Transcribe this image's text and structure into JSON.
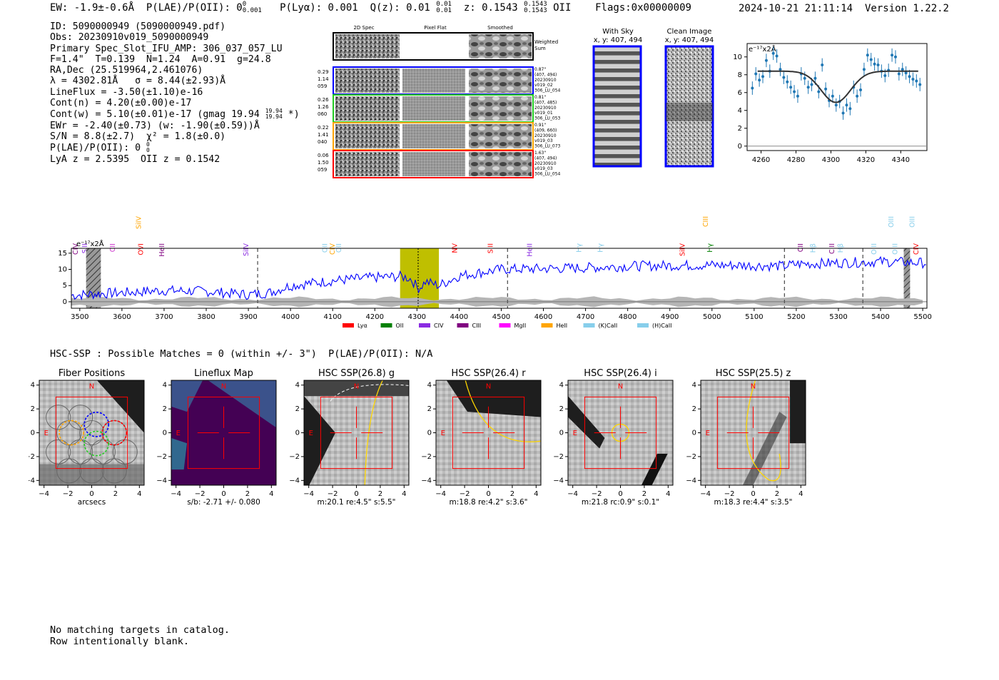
{
  "header": {
    "ew": "EW: -1.9±-0.6Å",
    "plae_label": "P(LAE)/P(OII): 0",
    "plae_sup": "0",
    "plae_sub": "0.001",
    "plya": "P(Lyα): 0.001",
    "qz_label": "Q(z): 0.01",
    "qz_sup": "0.01",
    "qz_sub": "0.01",
    "z_label": "z: 0.1543",
    "z_sup": "0.1543",
    "z_sub": "0.1543",
    "z_line": "OII",
    "flags": "Flags:0x00000009",
    "datetime": "2024-10-21 21:11:14",
    "version": "Version 1.22.2"
  },
  "info": [
    "ID: 5090000949 (5090000949.pdf)",
    "Obs: 20230910v019_5090000949",
    "Primary Spec_Slot_IFU_AMP: 306_037_057_LU",
    "F=1.4\"  T=0.139  N=1.24  A=0.91  g=24.8",
    "RA,Dec (25.519964,2.461076)",
    "λ = 4302.81Å   σ = 8.44(±2.93)Å",
    "LineFlux = -3.50(±1.10)e-16",
    "Cont(n) = 4.20(±0.00)e-17",
    "Cont(w) = 5.10(±0.01)e-17 (gmag 19.94",
    "EWr = -2.40(±0.73) (w: -1.90(±0.59))Å",
    "S/N = 8.8(±2.7)  χ² = 1.8(±0.0)",
    "P(LAE)/P(OII): 0",
    "LyA z = 2.5395  OII z = 0.1542"
  ],
  "info_extras": {
    "gmag_sup": "19.94",
    "gmag_sub": "19.94",
    "gmag_tail": "*)",
    "plae_sup": "0",
    "plae_sub": "0"
  },
  "cutouts": {
    "headers": [
      "2D Spec",
      "Pixel Flat",
      "Smoothed"
    ],
    "weighted_label_1": "Weighted",
    "weighted_label_2": "Sum",
    "rows": [
      {
        "left": [
          "0.29",
          "1.14",
          "059"
        ],
        "right": [
          "0.87\"",
          "(407, 494)",
          "20230910",
          "v019_02",
          "306_LU_054"
        ],
        "color": "#0000ff"
      },
      {
        "left": [
          "0.26",
          "1.26",
          "060"
        ],
        "right": [
          "0.81\"",
          "(407, 485)",
          "20230910",
          "v019_01",
          "306_LU_053"
        ],
        "color": "#22cc22"
      },
      {
        "left": [
          "0.22",
          "1.41",
          "040"
        ],
        "right": [
          "0.91\"",
          "(409, 660)",
          "20230910",
          "v019_03",
          "306_LU_073"
        ],
        "color": "#ffa500"
      },
      {
        "left": [
          "0.06",
          "1.50",
          "059"
        ],
        "right": [
          "1.63\"",
          "(407, 494)",
          "20230910",
          "v019_03",
          "306_LU_054"
        ],
        "color": "#ff0000"
      }
    ]
  },
  "sky_panels": {
    "with_sky_title": "With Sky",
    "with_sky_coords": "x, y: 407, 494",
    "clean_title": "Clean Image",
    "clean_coords": "x, y: 407, 494"
  },
  "zoom_chart": {
    "unit_label": "e⁻¹⁷x2Å"
  },
  "spectrum_labels": {
    "unit_label": "e⁻¹⁷x2Å"
  },
  "hsc": {
    "summary": "HSC-SSP : Possible Matches = 0 (within +/- 3\")  P(LAE)/P(OII): N/A",
    "panels": [
      {
        "title": "Fiber Positions",
        "caption": "arcsecs"
      },
      {
        "title": "Lineflux Map",
        "caption": "s/b: -2.71 +/- 0.080"
      },
      {
        "title": "HSC SSP(26.8) g",
        "caption": "m:20.1  re:4.5\"  s:5.5\""
      },
      {
        "title": "HSC SSP(26.4) r",
        "caption": "m:18.8  re:4.2\"  s:3.6\""
      },
      {
        "title": "HSC SSP(26.4) i",
        "caption": "m:21.8  rc:0.9\"  s:0.1\""
      },
      {
        "title": "HSC SSP(25.5) z",
        "caption": "m:18.3  re:4.4\"  s:3.5\""
      }
    ],
    "n_label": "N",
    "e_label": "E"
  },
  "notes": [
    "No matching targets in catalog.",
    "Row intentionally blank."
  ],
  "chart_data": [
    {
      "type": "scatter",
      "title": "",
      "xlabel": "",
      "ylabel": "e⁻¹⁷x2Å",
      "xlim": [
        4252,
        4355
      ],
      "ylim": [
        -0.5,
        11.5
      ],
      "xticks": [
        4260,
        4280,
        4300,
        4320,
        4340
      ],
      "yticks": [
        0,
        2,
        4,
        6,
        8,
        10
      ],
      "points": {
        "x": [
          4255,
          4257,
          4259,
          4261,
          4263,
          4265,
          4267,
          4269,
          4271,
          4273,
          4275,
          4277,
          4279,
          4281,
          4283,
          4285,
          4287,
          4289,
          4291,
          4293,
          4295,
          4297,
          4299,
          4301,
          4303,
          4305,
          4307,
          4309,
          4311,
          4313,
          4315,
          4317,
          4319,
          4321,
          4323,
          4325,
          4327,
          4329,
          4331,
          4333,
          4335,
          4337,
          4339,
          4341,
          4343,
          4345,
          4347,
          4349,
          4351
        ],
        "y": [
          6.5,
          8.1,
          7.4,
          7.8,
          9.6,
          8.4,
          10.4,
          10.1,
          8.6,
          7.7,
          7.2,
          6.6,
          6.1,
          5.6,
          8.1,
          7.6,
          6.6,
          6.9,
          7.6,
          6.1,
          9.1,
          6.4,
          5.1,
          5.6,
          4.6,
          5.0,
          3.7,
          4.6,
          4.2,
          6.6,
          5.6,
          6.3,
          8.6,
          10.2,
          9.7,
          9.2,
          9.1,
          8.4,
          7.9,
          8.5,
          10.2,
          10.0,
          8.1,
          8.6,
          8.2,
          7.8,
          7.5,
          7.3,
          6.9
        ]
      },
      "fit": {
        "continuum": 8.4,
        "center": 4302.81,
        "sigma": 8.44,
        "depth": 3.5
      }
    },
    {
      "type": "line",
      "title": "",
      "xlabel": "",
      "ylabel": "e⁻¹⁷x2Å",
      "xlim": [
        3480,
        5510
      ],
      "ylim": [
        -2,
        16.5
      ],
      "xticks": [
        3500,
        3600,
        3700,
        3800,
        3900,
        4000,
        4100,
        4200,
        4300,
        4400,
        4500,
        4600,
        4700,
        4800,
        4900,
        5000,
        5100,
        5200,
        5300,
        5400,
        5500
      ],
      "yticks": [
        0,
        5,
        10,
        15
      ],
      "highlight_region": [
        4260,
        4352
      ],
      "line_center": 4302.81,
      "vertical_dashed": [
        3922,
        4515,
        5172,
        5358
      ],
      "hatched_bands": [
        [
          3515,
          3550
        ],
        [
          5455,
          5470
        ]
      ],
      "line_markers": [
        {
          "label": "CIV",
          "x": 3490,
          "color": "#800080",
          "row": 0
        },
        {
          "label": "SiII",
          "x": 3512,
          "color": "#8a2be2",
          "row": 0
        },
        {
          "label": "CII",
          "x": 3578,
          "color": "#cc33cc",
          "row": 0
        },
        {
          "label": "SiIV",
          "x": 3640,
          "color": "#ffa500",
          "row": 1
        },
        {
          "label": "OVI",
          "x": 3645,
          "color": "#ff0000",
          "row": 0
        },
        {
          "label": "HeII",
          "x": 3695,
          "color": "#800080",
          "row": 0
        },
        {
          "label": "SiIV",
          "x": 3895,
          "color": "#8a2be2",
          "row": 0
        },
        {
          "label": "OII",
          "x": 4082,
          "color": "#87ceeb",
          "row": 0
        },
        {
          "label": "CIV",
          "x": 4100,
          "color": "#ffa500",
          "row": 0
        },
        {
          "label": "OII",
          "x": 4115,
          "color": "#87ceeb",
          "row": 0
        },
        {
          "label": "NV",
          "x": 4390,
          "color": "#ff0000",
          "row": 0
        },
        {
          "label": "SiII",
          "x": 4475,
          "color": "#ff0000",
          "row": 0
        },
        {
          "label": "HeII",
          "x": 4568,
          "color": "#8a2be2",
          "row": 0
        },
        {
          "label": "Hγ",
          "x": 4685,
          "color": "#87ceeb",
          "row": 0
        },
        {
          "label": "Hγ",
          "x": 4735,
          "color": "#87ceeb",
          "row": 0
        },
        {
          "label": "SiIV",
          "x": 4930,
          "color": "#ff0000",
          "row": 0
        },
        {
          "label": "CIII",
          "x": 4985,
          "color": "#ffa500",
          "row": 1
        },
        {
          "label": "Hγ",
          "x": 4995,
          "color": "#008000",
          "row": 0
        },
        {
          "label": "CII",
          "x": 5210,
          "color": "#800080",
          "row": 0
        },
        {
          "label": "Hβ",
          "x": 5240,
          "color": "#87ceeb",
          "row": 0
        },
        {
          "label": "CIII",
          "x": 5285,
          "color": "#800080",
          "row": 0
        },
        {
          "label": "Hβ",
          "x": 5305,
          "color": "#87ceeb",
          "row": 0
        },
        {
          "label": "OIII",
          "x": 5385,
          "color": "#87ceeb",
          "row": 0
        },
        {
          "label": "OIII",
          "x": 5425,
          "color": "#87ceeb",
          "row": 1
        },
        {
          "label": "OIII",
          "x": 5435,
          "color": "#87ceeb",
          "row": 0
        },
        {
          "label": "OIII",
          "x": 5475,
          "color": "#87ceeb",
          "row": 1
        },
        {
          "label": "CIV",
          "x": 5485,
          "color": "#ff0000",
          "row": 0
        }
      ],
      "legend": [
        {
          "name": "Lyα",
          "color": "#ff0000"
        },
        {
          "name": "OII",
          "color": "#008000"
        },
        {
          "name": "CIV",
          "color": "#8a2be2"
        },
        {
          "name": "CIII",
          "color": "#800080"
        },
        {
          "name": "MgII",
          "color": "#ff00ff"
        },
        {
          "name": "HeII",
          "color": "#ffa500"
        },
        {
          "name": "(K)CaII",
          "color": "#87ceeb"
        },
        {
          "name": "(H)CaII",
          "color": "#87ceeb"
        }
      ],
      "series_anchors": {
        "x": [
          3480,
          3550,
          3600,
          3700,
          3800,
          3900,
          3950,
          4000,
          4100,
          4200,
          4260,
          4300,
          4352,
          4400,
          4500,
          4600,
          4700,
          4800,
          4900,
          5000,
          5100,
          5170,
          5200,
          5300,
          5400,
          5510
        ],
        "y": [
          2.0,
          2.5,
          2.8,
          3.5,
          3.2,
          2.2,
          2.8,
          5.0,
          6.5,
          7.5,
          7.8,
          7.0,
          5.0,
          8.0,
          10.0,
          10.2,
          10.5,
          11.0,
          11.2,
          11.3,
          11.2,
          11.0,
          11.6,
          12.0,
          12.4,
          12.0
        ]
      }
    }
  ]
}
